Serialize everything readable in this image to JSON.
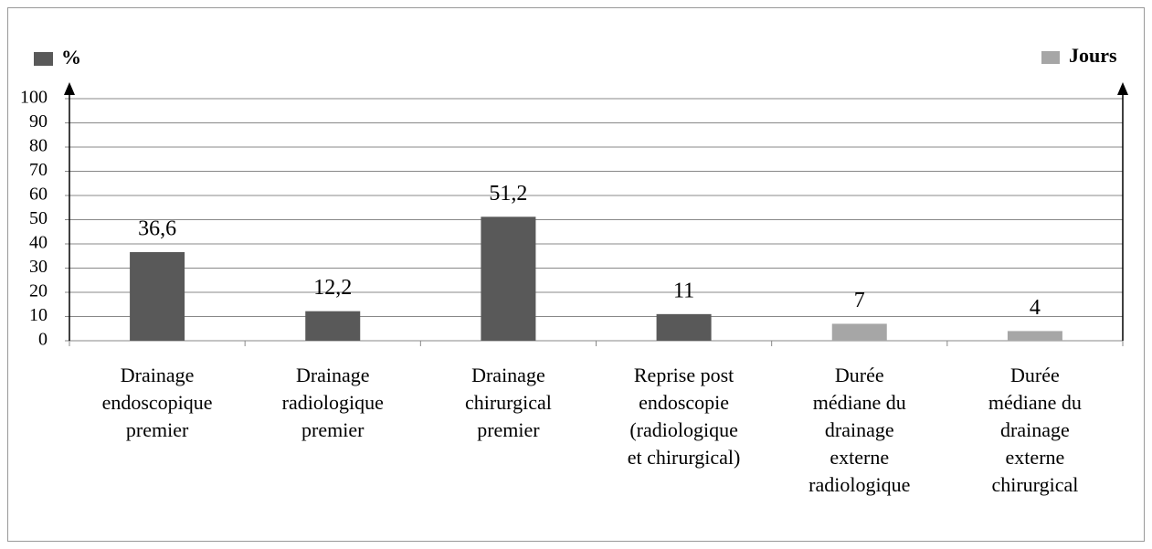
{
  "chart_data": {
    "type": "bar",
    "categories": [
      [
        "Drainage",
        "endoscopique",
        "premier"
      ],
      [
        "Drainage",
        "radiologique",
        "premier"
      ],
      [
        "Drainage",
        "chirurgical",
        "premier"
      ],
      [
        "Reprise post",
        "endoscopie",
        "(radiologique",
        "et chirurgical)"
      ],
      [
        "Durée",
        "médiane du",
        "drainage",
        "externe",
        "radiologique"
      ],
      [
        "Durée",
        "médiane du",
        "drainage",
        "externe",
        "chirurgical"
      ]
    ],
    "series": [
      {
        "name": "%",
        "color": "#595959",
        "values": [
          36.6,
          12.2,
          51.2,
          11,
          null,
          null
        ],
        "value_labels": [
          "36,6",
          "12,2",
          "51,2",
          "11",
          null,
          null
        ]
      },
      {
        "name": "Jours",
        "color": "#a6a6a6",
        "axis": "y2",
        "values": [
          null,
          null,
          null,
          null,
          7,
          4
        ],
        "value_labels": [
          null,
          null,
          null,
          null,
          "7",
          "4"
        ]
      }
    ],
    "ylim": [
      0,
      100
    ],
    "yticks": [
      0,
      10,
      20,
      30,
      40,
      50,
      60,
      70,
      80,
      90,
      100
    ],
    "y2lim": [
      0,
      100
    ],
    "grid": true
  }
}
